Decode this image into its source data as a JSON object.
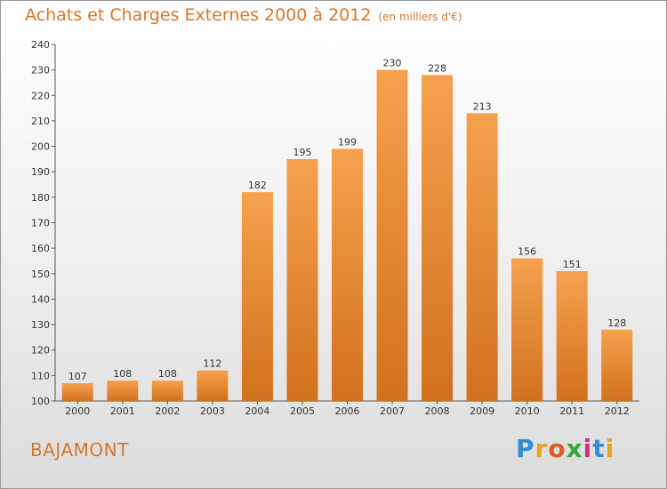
{
  "chart_data": {
    "type": "bar",
    "title": "Achats et Charges Externes 2000 à 2012",
    "subtitle": "(en milliers d'€)",
    "categories": [
      "2000",
      "2001",
      "2002",
      "2003",
      "2004",
      "2005",
      "2006",
      "2007",
      "2008",
      "2009",
      "2010",
      "2011",
      "2012"
    ],
    "values": [
      107,
      108,
      108,
      112,
      182,
      195,
      199,
      230,
      228,
      213,
      156,
      151,
      128
    ],
    "ylim": [
      100,
      240
    ],
    "yticks": [
      100,
      110,
      120,
      130,
      140,
      150,
      160,
      170,
      180,
      190,
      200,
      210,
      220,
      230,
      240
    ],
    "grid": false,
    "xlabel": "",
    "ylabel": ""
  },
  "commune": "BAJAMONT",
  "logo": {
    "letters": [
      "P",
      "r",
      "o",
      "x",
      "i",
      "t",
      "i"
    ],
    "colors": [
      "#2f8fd6",
      "#e8a21c",
      "#e05a1f",
      "#3aa53a",
      "#d62f7a",
      "#2f8fd6",
      "#e8a21c"
    ]
  },
  "colors": {
    "bar_top": "#f6a14e",
    "bar_bottom": "#d1711d",
    "accent": "#d9762a"
  }
}
